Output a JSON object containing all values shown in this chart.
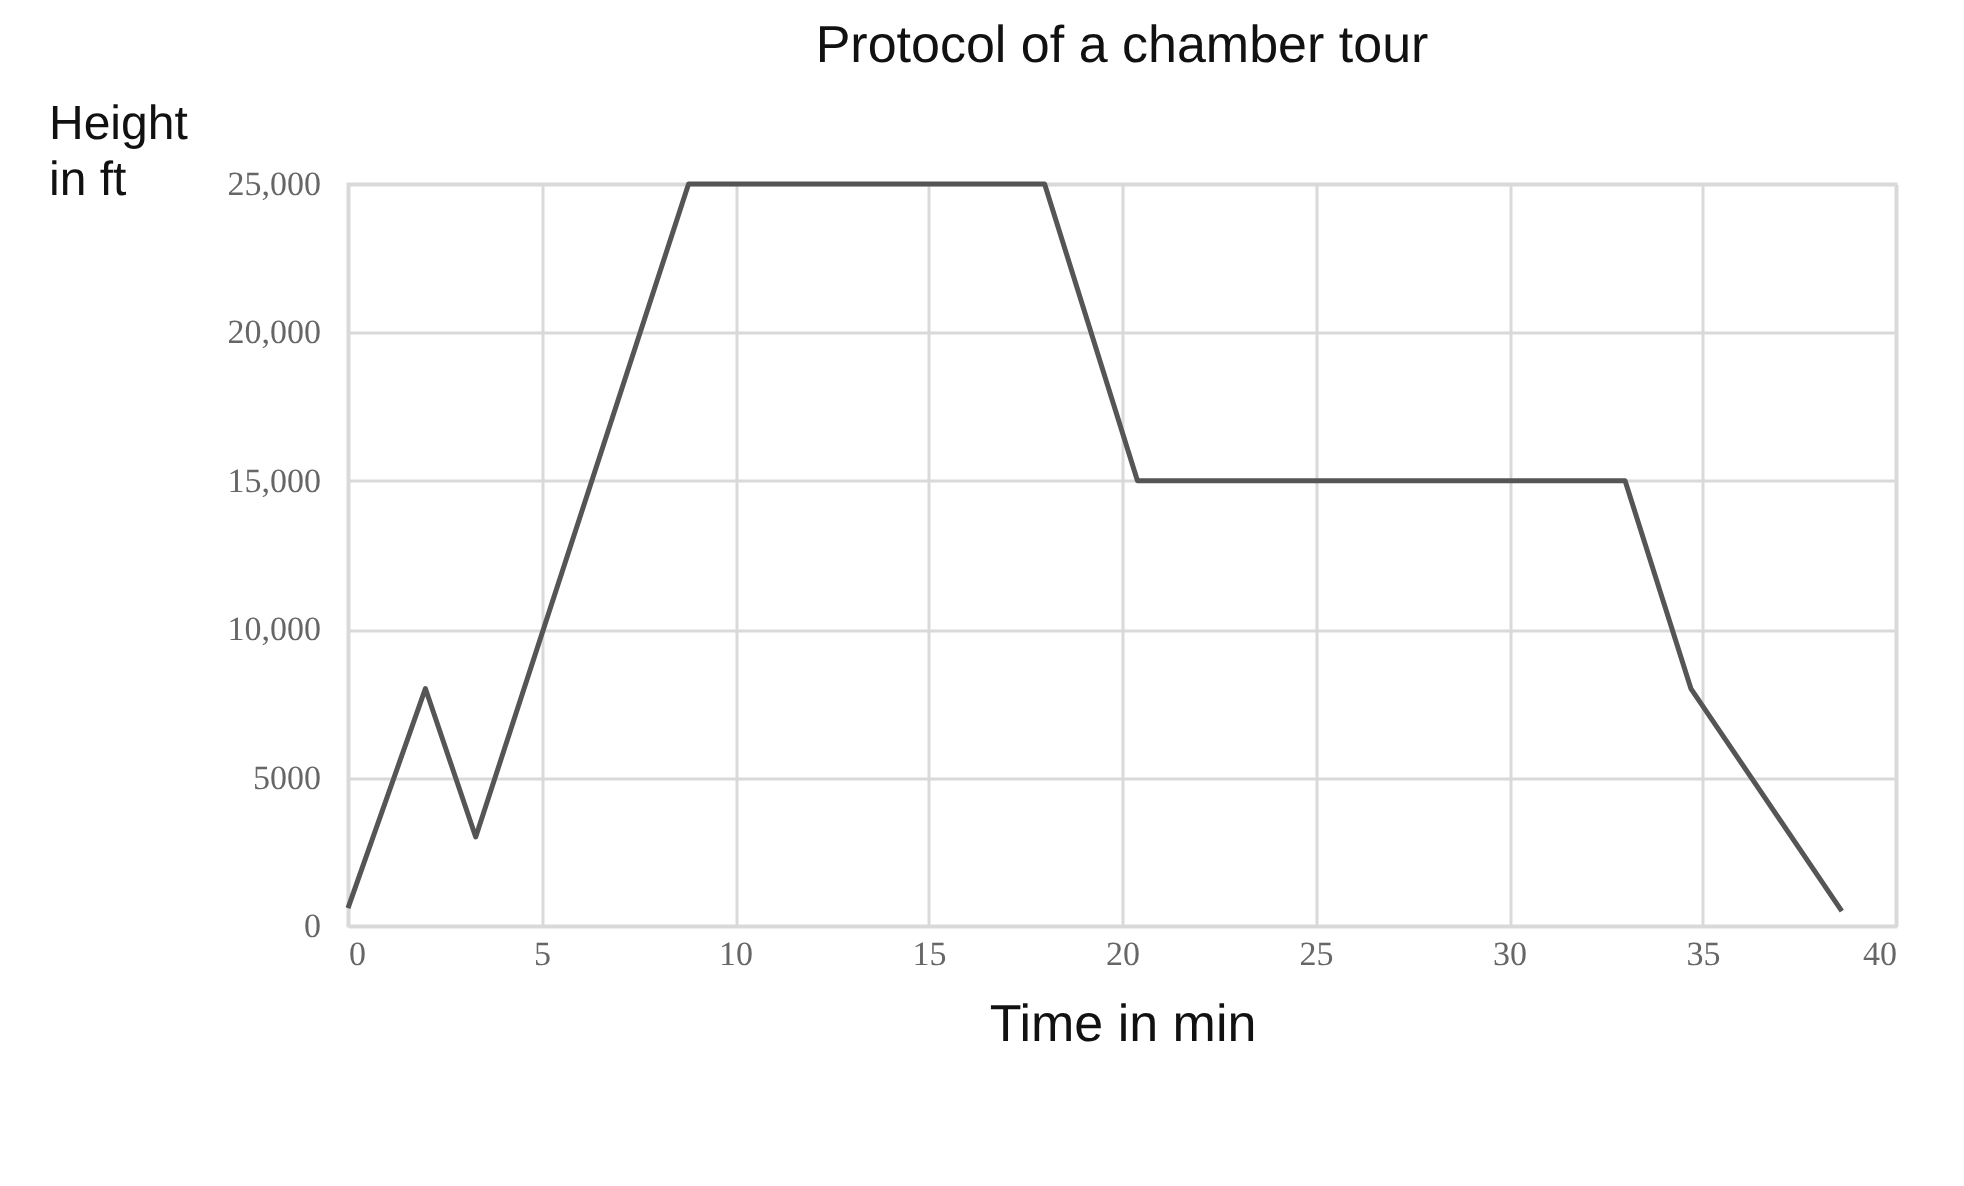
{
  "chart_data": {
    "type": "line",
    "title": "Protocol of a chamber tour",
    "xlabel": "Time in min",
    "ylabel": "Height\nin ft",
    "x": [
      0,
      2,
      3.3,
      8.8,
      18,
      20.4,
      33,
      34.7,
      38.6
    ],
    "series": [
      {
        "color": "#555555",
        "values": [
          600,
          8000,
          3000,
          25000,
          25000,
          15000,
          15000,
          8000,
          500
        ]
      }
    ],
    "xlim": [
      0,
      40
    ],
    "xticks": [
      0,
      5,
      10,
      15,
      20,
      25,
      30,
      35,
      40
    ],
    "ylim": [
      0,
      25000
    ],
    "yticks": [
      0,
      {
        "value": 5000,
        "label": "5000"
      },
      {
        "value": 10000,
        "label": "10,000"
      },
      {
        "value": 15000,
        "label": "15,000"
      },
      {
        "value": 20000,
        "label": "20,000"
      },
      {
        "value": 25000,
        "label": "25,000"
      }
    ],
    "grid": true,
    "marker": "none",
    "line_style": "solid"
  }
}
